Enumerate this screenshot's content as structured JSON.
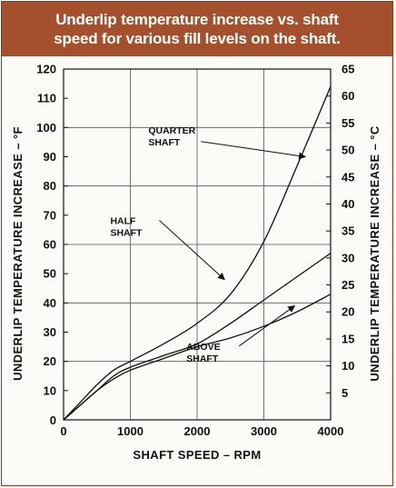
{
  "title_lines": [
    "Underlip temperature increase vs. shaft",
    "speed for various fill levels on the shaft."
  ],
  "chart_data": {
    "type": "line",
    "title": "Underlip temperature increase vs. shaft speed for various fill levels on the shaft.",
    "xlabel": "SHAFT SPEED – RPM",
    "ylabel": "UNDERLIP TEMPERATURE INCREASE – °F",
    "ylabel_right": "UNDERLIP TEMPERATURE INCREASE – °C",
    "xlim": [
      0,
      4000
    ],
    "ylim": [
      0,
      120
    ],
    "ylim_right": [
      0,
      65
    ],
    "x_ticks": [
      0,
      1000,
      2000,
      3000,
      4000
    ],
    "x_tick_labels": [
      "0",
      "1000",
      "2000",
      "3000",
      "4000"
    ],
    "y_ticks": [
      10,
      20,
      30,
      40,
      50,
      60,
      70,
      80,
      90,
      100,
      110,
      120
    ],
    "y_tick_labels": [
      "10",
      "20",
      "30",
      "40",
      "50",
      "60",
      "70",
      "80",
      "90",
      "100",
      "110",
      "120"
    ],
    "y_right_ticks": [
      5,
      10,
      15,
      20,
      25,
      30,
      35,
      40,
      45,
      50,
      55,
      60,
      65
    ],
    "y_right_tick_labels": [
      "5",
      "10",
      "15",
      "20",
      "25",
      "30",
      "35",
      "40",
      "45",
      "50",
      "55",
      "60",
      "65"
    ],
    "grid": true,
    "series": [
      {
        "name": "QUARTER SHAFT",
        "label_lines": [
          "QUARTER",
          "SHAFT"
        ],
        "x": [
          0,
          250,
          500,
          750,
          1000,
          1500,
          2000,
          2500,
          3000,
          3500,
          4000
        ],
        "y": [
          0,
          6,
          12,
          17,
          20,
          26,
          33,
          43,
          61,
          87,
          114
        ]
      },
      {
        "name": "HALF SHAFT",
        "label_lines": [
          "HALF",
          "SHAFT"
        ],
        "x": [
          0,
          250,
          500,
          750,
          1000,
          1500,
          2000,
          2500,
          3000,
          3500,
          4000
        ],
        "y": [
          0,
          5,
          10,
          15,
          18,
          22,
          26,
          33,
          41,
          49,
          57
        ]
      },
      {
        "name": "ABOVE SHAFT",
        "label_lines": [
          "ABOVE",
          "SHAFT"
        ],
        "x": [
          0,
          250,
          500,
          750,
          1000,
          1500,
          2000,
          2500,
          3000,
          3500,
          4000
        ],
        "y": [
          0,
          5,
          10,
          14,
          17,
          21,
          25,
          28,
          32,
          37,
          43
        ]
      }
    ],
    "annotations": [
      {
        "series": 0,
        "text_at": [
          1270,
          98
        ],
        "arrow_to": [
          3620,
          90
        ]
      },
      {
        "series": 1,
        "text_at": [
          700,
          67
        ],
        "arrow_to": [
          2410,
          48
        ]
      },
      {
        "series": 2,
        "text_at": [
          1840,
          24
        ],
        "arrow_to": [
          3460,
          39
        ]
      }
    ]
  }
}
